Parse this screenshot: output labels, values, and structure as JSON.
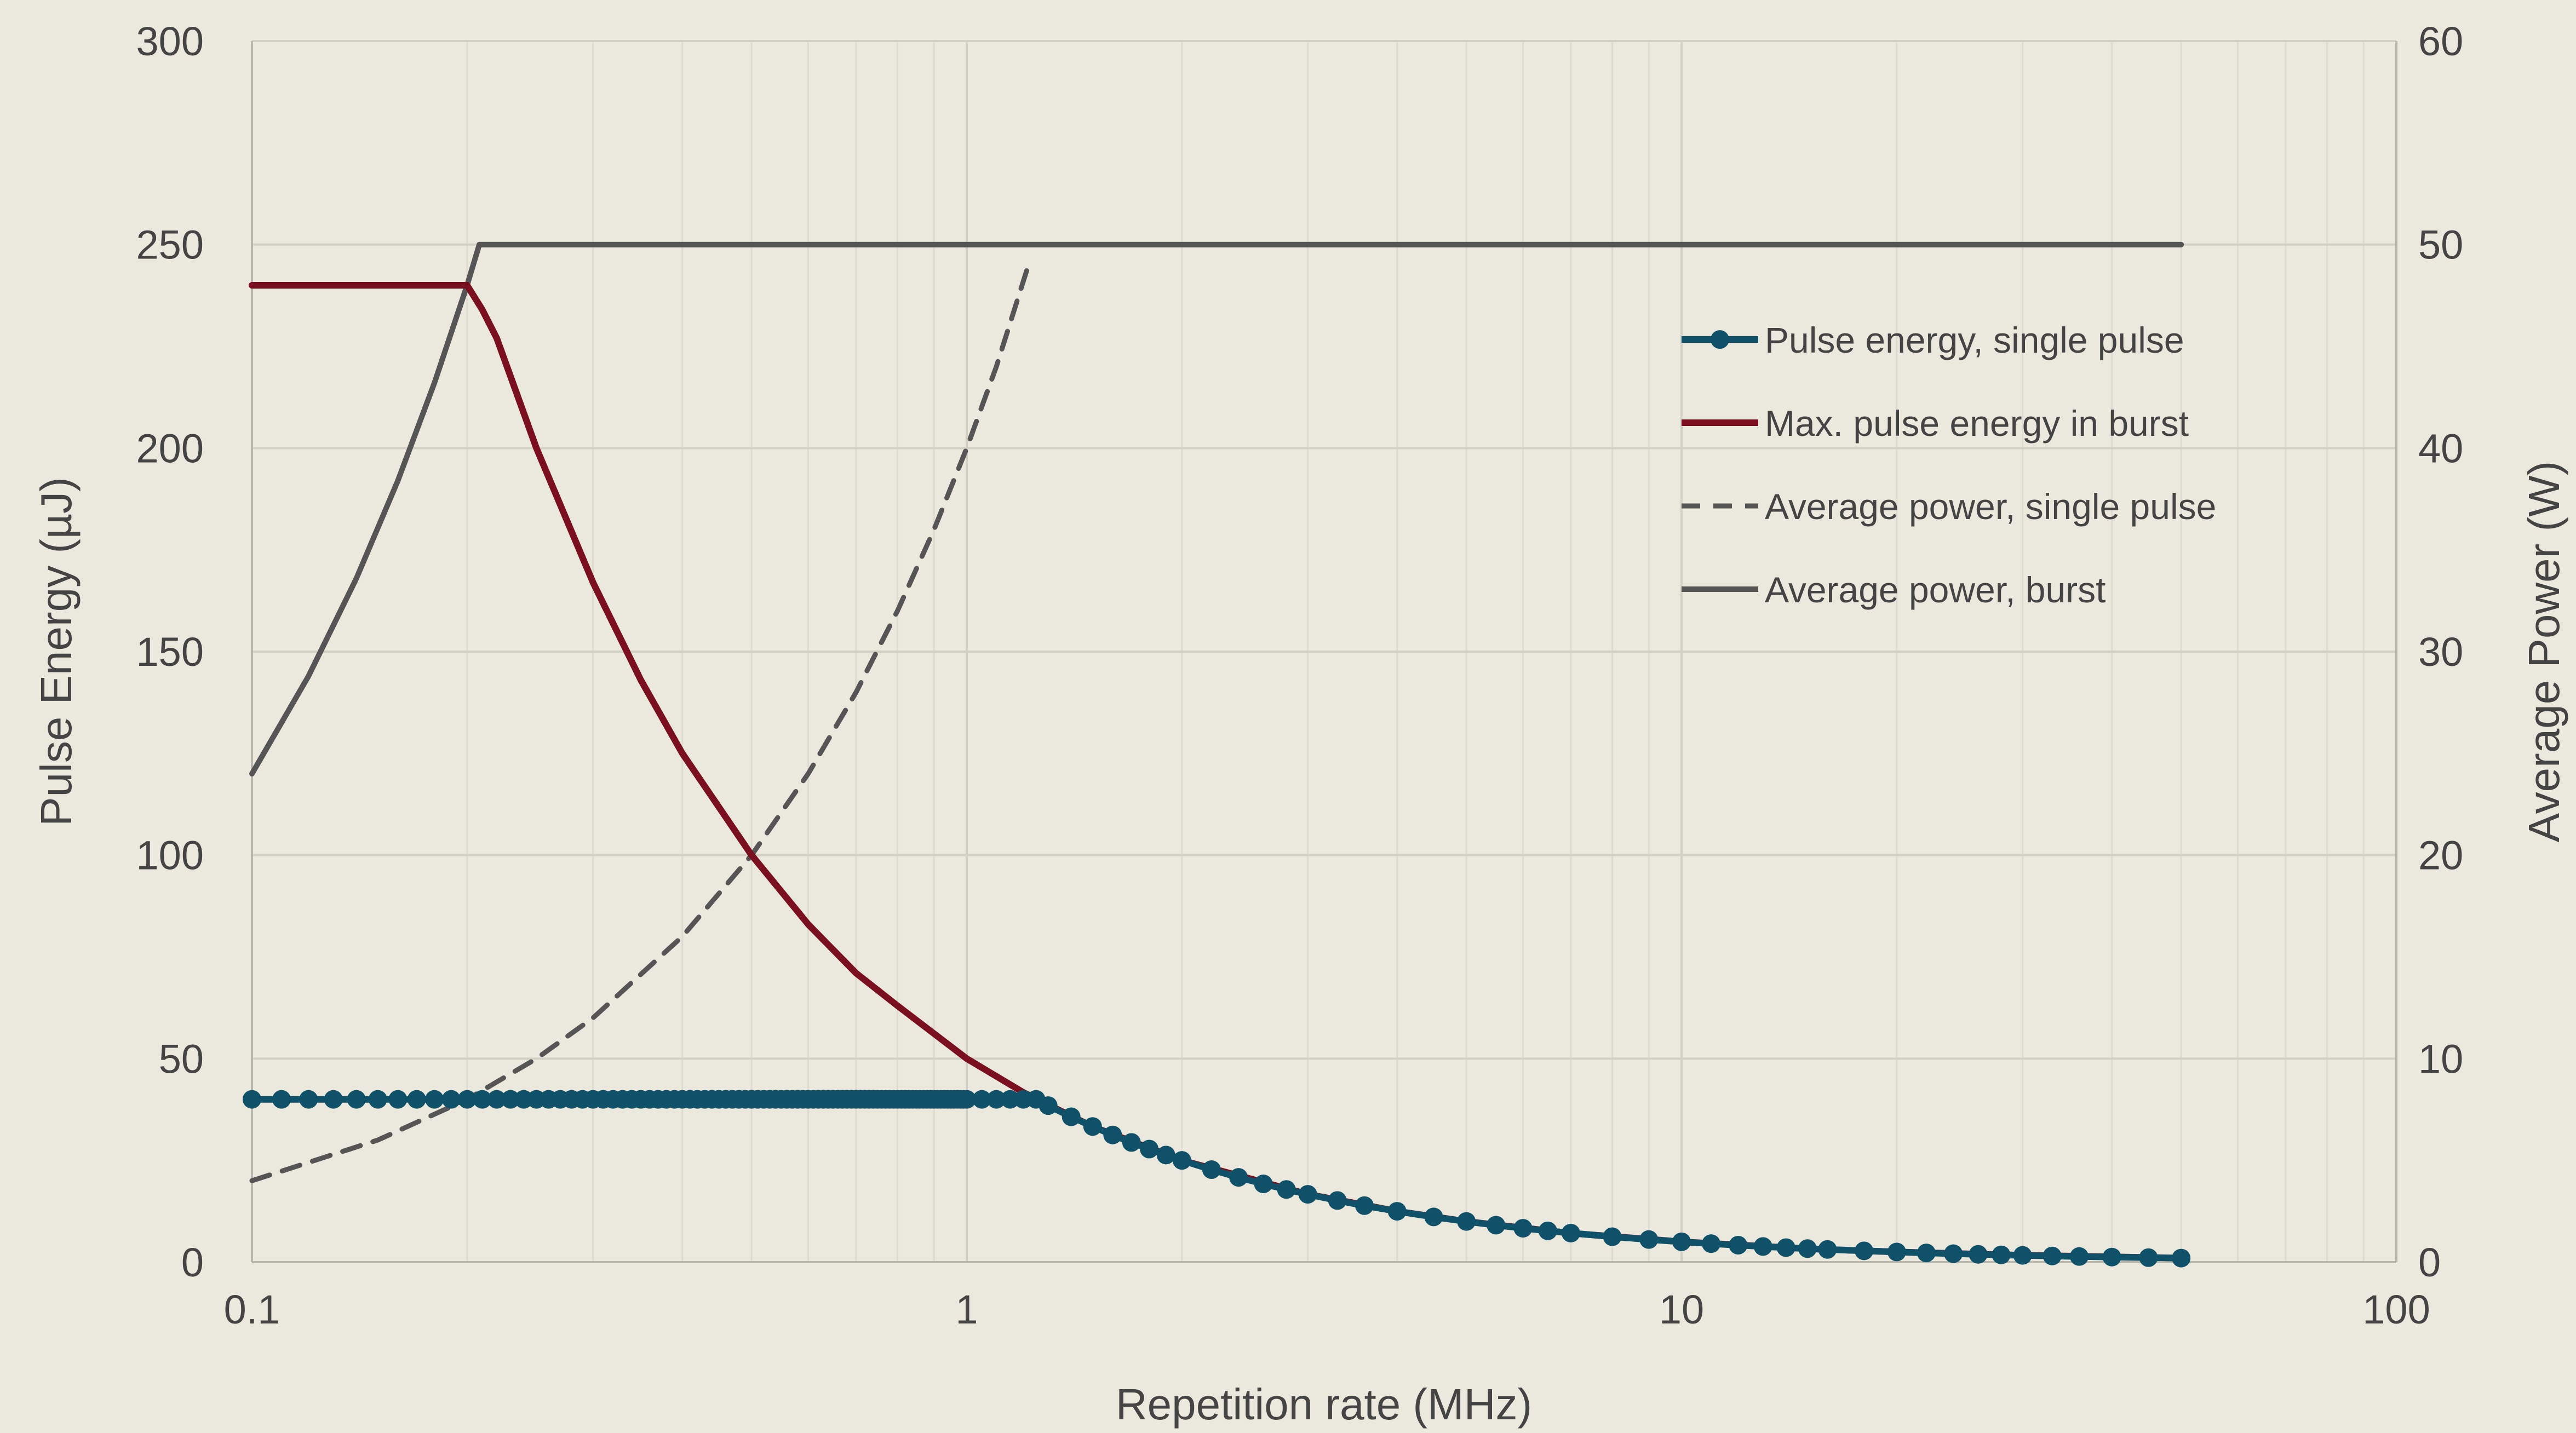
{
  "chart_data": {
    "type": "line",
    "xlabel": "Repetition rate (MHz)",
    "ylabel": "Pulse Energy (µJ)",
    "y2label": "Average Power (W)",
    "xscale": "log",
    "xlim": [
      0.1,
      100
    ],
    "ylim": [
      0,
      300
    ],
    "y2lim": [
      0,
      60
    ],
    "x_ticks": [
      "0.1",
      "1",
      "10",
      "100"
    ],
    "y_ticks": [
      "0",
      "50",
      "100",
      "150",
      "200",
      "250",
      "300"
    ],
    "y2_ticks": [
      "0",
      "10",
      "20",
      "30",
      "40",
      "50",
      "60"
    ],
    "grid": true,
    "legend_position": "right",
    "colors": {
      "background": "#ebe8dd",
      "single_pulse_energy": "#0f5168",
      "burst_energy": "#7a0f1f",
      "avg_power": "#555555",
      "grid": "#d3d0c6"
    },
    "series": [
      {
        "name": "Pulse energy, single pulse",
        "axis": "left",
        "style": "line-markers",
        "x": [
          0.1,
          0.11,
          0.12,
          0.13,
          0.14,
          0.15,
          0.16,
          0.17,
          0.18,
          0.19,
          0.2,
          0.21,
          0.22,
          0.23,
          0.24,
          0.25,
          0.26,
          0.27,
          0.28,
          0.29,
          0.3,
          0.31,
          0.32,
          0.33,
          0.34,
          0.35,
          0.36,
          0.37,
          0.38,
          0.39,
          0.4,
          0.41,
          0.42,
          0.43,
          0.44,
          0.45,
          0.46,
          0.47,
          0.48,
          0.49,
          0.5,
          0.51,
          0.52,
          0.53,
          0.54,
          0.55,
          0.56,
          0.57,
          0.58,
          0.59,
          0.6,
          0.61,
          0.62,
          0.63,
          0.64,
          0.65,
          0.66,
          0.67,
          0.68,
          0.69,
          0.7,
          0.71,
          0.72,
          0.73,
          0.74,
          0.75,
          0.76,
          0.77,
          0.78,
          0.79,
          0.8,
          0.81,
          0.82,
          0.83,
          0.84,
          0.85,
          0.86,
          0.87,
          0.88,
          0.89,
          0.9,
          0.91,
          0.92,
          0.93,
          0.94,
          0.95,
          0.96,
          0.97,
          0.98,
          0.99,
          1.0,
          1.05,
          1.1,
          1.15,
          1.2,
          1.25,
          1.3,
          1.4,
          1.5,
          1.6,
          1.7,
          1.8,
          1.9,
          2.0,
          2.2,
          2.4,
          2.6,
          2.8,
          3.0,
          3.3,
          3.6,
          4.0,
          4.5,
          5.0,
          5.5,
          6.0,
          6.5,
          7.0,
          8.0,
          9.0,
          10.0,
          11.0,
          12.0,
          13.0,
          14.0,
          15.0,
          16.0,
          18.0,
          20.0,
          22.0,
          24.0,
          26.0,
          28.0,
          30.0,
          33.0,
          36.0,
          40.0,
          45.0,
          50.0
        ],
        "y": [
          40,
          40,
          40,
          40,
          40,
          40,
          40,
          40,
          40,
          40,
          40,
          40,
          40,
          40,
          40,
          40,
          40,
          40,
          40,
          40,
          40,
          40,
          40,
          40,
          40,
          40,
          40,
          40,
          40,
          40,
          40,
          40,
          40,
          40,
          40,
          40,
          40,
          40,
          40,
          40,
          40,
          40,
          40,
          40,
          40,
          40,
          40,
          40,
          40,
          40,
          40,
          40,
          40,
          40,
          40,
          40,
          40,
          40,
          40,
          40,
          40,
          40,
          40,
          40,
          40,
          40,
          40,
          40,
          40,
          40,
          40,
          40,
          40,
          40,
          40,
          40,
          40,
          40,
          40,
          40,
          40,
          40,
          40,
          40,
          40,
          40,
          40,
          40,
          40,
          40,
          40,
          40,
          40,
          40,
          40,
          40,
          38.46,
          35.71,
          33.33,
          31.25,
          29.41,
          27.78,
          26.32,
          25,
          22.73,
          20.83,
          19.23,
          17.86,
          16.67,
          15.15,
          13.89,
          12.5,
          11.11,
          10,
          9.09,
          8.33,
          7.69,
          7.14,
          6.25,
          5.56,
          5,
          4.55,
          4.17,
          3.85,
          3.57,
          3.33,
          3.13,
          2.78,
          2.5,
          2.27,
          2.08,
          1.92,
          1.79,
          1.67,
          1.52,
          1.39,
          1.25,
          1.11,
          1.0
        ]
      },
      {
        "name": "Max. pulse energy in burst",
        "axis": "left",
        "style": "line",
        "x": [
          0.1,
          0.15,
          0.2,
          0.21,
          0.22,
          0.25,
          0.3,
          0.35,
          0.4,
          0.5,
          0.6,
          0.7,
          0.8,
          1.0,
          1.2,
          1.5,
          2.0,
          3.0,
          4.0,
          5.0,
          7.0,
          10.0,
          15.0,
          20.0,
          30.0,
          50.0
        ],
        "y": [
          240,
          240,
          240,
          234,
          227,
          200,
          167,
          143,
          125,
          100,
          83,
          71,
          63,
          50,
          41.7,
          33.3,
          25,
          16.7,
          12.5,
          10,
          7.1,
          5,
          3.3,
          2.5,
          1.7,
          1.0
        ]
      },
      {
        "name": "Average power, single pulse",
        "axis": "right",
        "style": "dashed",
        "x": [
          0.1,
          0.15,
          0.2,
          0.25,
          0.3,
          0.4,
          0.5,
          0.6,
          0.7,
          0.8,
          0.9,
          1.0,
          1.1,
          1.22
        ],
        "y": [
          4,
          6,
          8,
          10,
          12,
          16,
          20,
          24,
          28,
          32,
          36,
          40,
          44,
          49
        ]
      },
      {
        "name": "Average power, burst",
        "axis": "right",
        "style": "line",
        "x": [
          0.1,
          0.12,
          0.14,
          0.16,
          0.18,
          0.2,
          0.208,
          0.25,
          0.5,
          1.0,
          2.0,
          5.0,
          10.0,
          20.0,
          50.0
        ],
        "y": [
          24,
          28.8,
          33.6,
          38.4,
          43.2,
          48,
          50,
          50,
          50,
          50,
          50,
          50,
          50,
          50,
          50
        ]
      }
    ]
  }
}
